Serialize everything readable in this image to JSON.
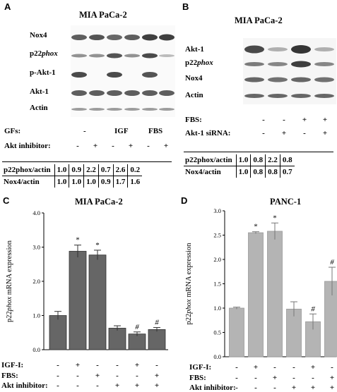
{
  "panelA": {
    "letter": "A",
    "title": "MIA PaCa-2",
    "blot_labels": [
      "Nox4",
      "p22",
      "p-Akt-1",
      "Akt-1",
      "Actin"
    ],
    "p22_suffix": "phox",
    "gfs_label": "GFs:",
    "gfs_values": [
      "-",
      "IGF",
      "FBS"
    ],
    "akt_label": "Akt inhibitor:",
    "akt_signs": [
      "-",
      "+",
      "-",
      "+",
      "-",
      "+"
    ],
    "ratios": [
      {
        "label": "p22phox/actin",
        "values": [
          "1.0",
          "0.9",
          "2.2",
          "0.7",
          "2.6",
          "0.2"
        ]
      },
      {
        "label": "Nox4/actin",
        "values": [
          "1.0",
          "1.0",
          "1.0",
          "0.9",
          "1.7",
          "1.6"
        ]
      }
    ]
  },
  "panelB": {
    "letter": "B",
    "title": "MIA PaCa-2",
    "blot_labels": [
      "Akt-1",
      "p22",
      "Nox4",
      "Actin"
    ],
    "p22_suffix": "phox",
    "fbs_label": "FBS:",
    "fbs_signs": [
      "-",
      "-",
      "+",
      "+"
    ],
    "sirna_label": "Akt-1 siRNA:",
    "sirna_signs": [
      "-",
      "+",
      "-",
      "+"
    ],
    "ratios": [
      {
        "label": "p22phox/actin",
        "values": [
          "1.0",
          "0.8",
          "2.2",
          "0.8"
        ]
      },
      {
        "label": "Nox4/actin",
        "values": [
          "1.0",
          "0.8",
          "0.8",
          "0.7"
        ]
      }
    ]
  },
  "panelC": {
    "letter": "C",
    "igf_label": "IGF-I:",
    "fbs_label": "FBS:",
    "akt_label": "Akt inhibitor:",
    "igf_signs": [
      "-",
      "+",
      "-",
      "-",
      "+",
      "-"
    ],
    "fbs_signs": [
      "-",
      "-",
      "+",
      "-",
      "-",
      "+"
    ],
    "akt_signs": [
      "-",
      "-",
      "-",
      "+",
      "+",
      "+"
    ]
  },
  "panelD": {
    "letter": "D",
    "igf_label": "IGF-I:",
    "fbs_label": "FBS:",
    "akt_label": "Akt inhibitor:",
    "igf_signs": [
      "-",
      "+",
      "-",
      "-",
      "+",
      "-"
    ],
    "fbs_signs": [
      "-",
      "-",
      "+",
      "-",
      "-",
      "+"
    ],
    "akt_signs": [
      "-",
      "-",
      "-",
      "+",
      "+",
      "+"
    ]
  },
  "colors": {
    "bar_c": "#666666",
    "bar_d": "#b4b4b4",
    "blot_band": "#2a2a2a"
  },
  "chart_data": [
    {
      "type": "bar",
      "title": "MIA PaCa-2",
      "ylabel": "p22phox mRNA expression",
      "ylim": [
        0,
        4
      ],
      "yticks": [
        "0.0",
        "1.0",
        "2.0",
        "3.0",
        "4.0"
      ],
      "values": [
        1.0,
        2.88,
        2.77,
        0.63,
        0.46,
        0.59
      ],
      "errors": [
        0.12,
        0.18,
        0.14,
        0.07,
        0.06,
        0.06
      ],
      "annotations": [
        "",
        "*",
        "*",
        "",
        "#",
        "#"
      ],
      "color": "#666666"
    },
    {
      "type": "bar",
      "title": "PANC-1",
      "ylabel": "p22phox mRNA expression",
      "ylim": [
        0,
        3
      ],
      "yticks": [
        "0.0",
        "0.5",
        "1.0",
        "1.5",
        "2.0",
        "2.5",
        "3.0"
      ],
      "values": [
        1.0,
        2.55,
        2.58,
        0.98,
        0.72,
        1.55
      ],
      "errors": [
        0.02,
        0.02,
        0.17,
        0.15,
        0.16,
        0.29
      ],
      "annotations": [
        "",
        "*",
        "*",
        "",
        "#",
        "#"
      ],
      "color": "#b4b4b4"
    }
  ]
}
